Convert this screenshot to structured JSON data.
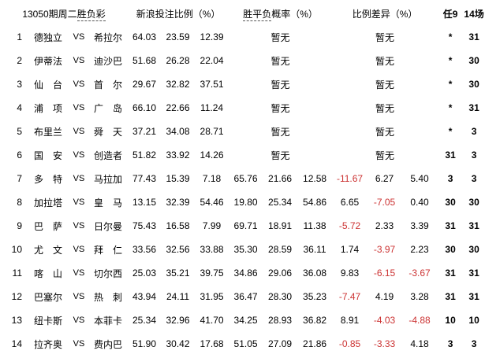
{
  "colors": {
    "text": "#000000",
    "negative": "#cc3333",
    "background": "#ffffff"
  },
  "header": {
    "title_prefix": "13050期周二",
    "title_lottery": "胜负彩",
    "col_bet_ratio": "新浪投注比例（%）",
    "col_prob_term": "胜平负",
    "col_prob_suffix": "概率（%）",
    "col_diff": "比例差异（%）",
    "col_ren9": "任9",
    "col_14games": "14场"
  },
  "vs_label": "VS",
  "placeholder": "暂无",
  "rows": [
    {
      "num": "1",
      "home": "德独立",
      "away": "希拉尔",
      "bet": [
        "64.03",
        "23.59",
        "12.39"
      ],
      "prob": null,
      "diff": null,
      "ren9": "*",
      "c14": "31"
    },
    {
      "num": "2",
      "home": "伊蒂法",
      "away": "迪沙巴",
      "bet": [
        "51.68",
        "26.28",
        "22.04"
      ],
      "prob": null,
      "diff": null,
      "ren9": "*",
      "c14": "30"
    },
    {
      "num": "3",
      "home": "仙　台",
      "away": "首　尔",
      "bet": [
        "29.67",
        "32.82",
        "37.51"
      ],
      "prob": null,
      "diff": null,
      "ren9": "*",
      "c14": "30"
    },
    {
      "num": "4",
      "home": "浦　项",
      "away": "广　岛",
      "bet": [
        "66.10",
        "22.66",
        "11.24"
      ],
      "prob": null,
      "diff": null,
      "ren9": "*",
      "c14": "31"
    },
    {
      "num": "5",
      "home": "布里兰",
      "away": "舜　天",
      "bet": [
        "37.21",
        "34.08",
        "28.71"
      ],
      "prob": null,
      "diff": null,
      "ren9": "*",
      "c14": "3"
    },
    {
      "num": "6",
      "home": "国　安",
      "away": "创造者",
      "bet": [
        "51.82",
        "33.92",
        "14.26"
      ],
      "prob": null,
      "diff": null,
      "ren9": "31",
      "c14": "3"
    },
    {
      "num": "7",
      "home": "多　特",
      "away": "马拉加",
      "bet": [
        "77.43",
        "15.39",
        "7.18"
      ],
      "prob": [
        "65.76",
        "21.66",
        "12.58"
      ],
      "diff": [
        "-11.67",
        "6.27",
        "5.40"
      ],
      "ren9": "3",
      "c14": "3"
    },
    {
      "num": "8",
      "home": "加拉塔",
      "away": "皇　马",
      "bet": [
        "13.15",
        "32.39",
        "54.46"
      ],
      "prob": [
        "19.80",
        "25.34",
        "54.86"
      ],
      "diff": [
        "6.65",
        "-7.05",
        "0.40"
      ],
      "ren9": "30",
      "c14": "30"
    },
    {
      "num": "9",
      "home": "巴　萨",
      "away": "日尔曼",
      "bet": [
        "75.43",
        "16.58",
        "7.99"
      ],
      "prob": [
        "69.71",
        "18.91",
        "11.38"
      ],
      "diff": [
        "-5.72",
        "2.33",
        "3.39"
      ],
      "ren9": "31",
      "c14": "31"
    },
    {
      "num": "10",
      "home": "尤　文",
      "away": "拜　仁",
      "bet": [
        "33.56",
        "32.56",
        "33.88"
      ],
      "prob": [
        "35.30",
        "28.59",
        "36.11"
      ],
      "diff": [
        "1.74",
        "-3.97",
        "2.23"
      ],
      "ren9": "30",
      "c14": "30"
    },
    {
      "num": "11",
      "home": "喀　山",
      "away": "切尔西",
      "bet": [
        "25.03",
        "35.21",
        "39.75"
      ],
      "prob": [
        "34.86",
        "29.06",
        "36.08"
      ],
      "diff": [
        "9.83",
        "-6.15",
        "-3.67"
      ],
      "ren9": "31",
      "c14": "31"
    },
    {
      "num": "12",
      "home": "巴塞尔",
      "away": "热　刺",
      "bet": [
        "43.94",
        "24.11",
        "31.95"
      ],
      "prob": [
        "36.47",
        "28.30",
        "35.23"
      ],
      "diff": [
        "-7.47",
        "4.19",
        "3.28"
      ],
      "ren9": "31",
      "c14": "31"
    },
    {
      "num": "13",
      "home": "纽卡斯",
      "away": "本菲卡",
      "bet": [
        "25.34",
        "32.96",
        "41.70"
      ],
      "prob": [
        "34.25",
        "28.93",
        "36.82"
      ],
      "diff": [
        "8.91",
        "-4.03",
        "-4.88"
      ],
      "ren9": "10",
      "c14": "10"
    },
    {
      "num": "14",
      "home": "拉齐奥",
      "away": "费内巴",
      "bet": [
        "51.90",
        "30.42",
        "17.68"
      ],
      "prob": [
        "51.05",
        "27.09",
        "21.86"
      ],
      "diff": [
        "-0.85",
        "-3.33",
        "4.18"
      ],
      "ren9": "3",
      "c14": "3"
    }
  ]
}
